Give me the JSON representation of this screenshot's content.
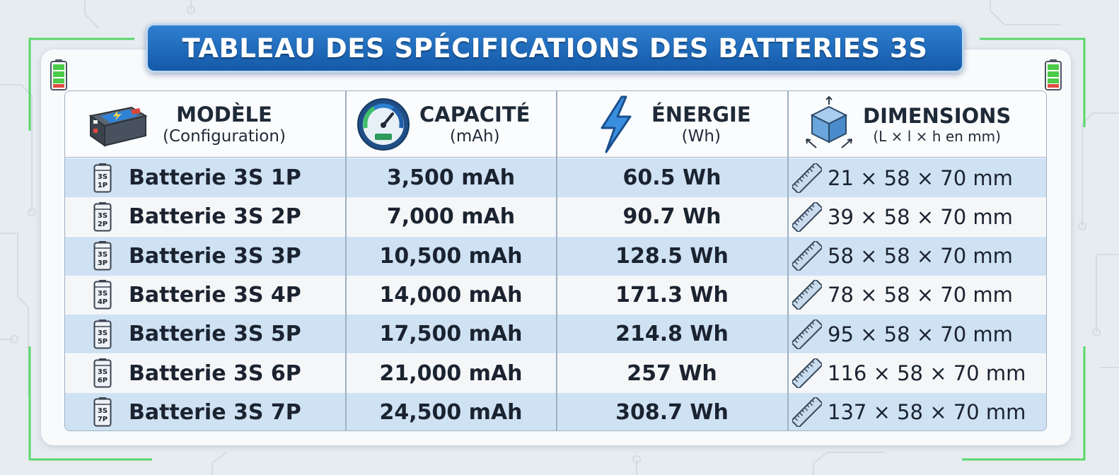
{
  "title": "TABLEAU DES SPÉCIFICATIONS DES BATTERIES 3S",
  "header": {
    "model": {
      "main": "MODÈLE",
      "sub": "(Configuration)",
      "icon": "battery-pack-icon"
    },
    "capacity": {
      "main": "CAPACITÉ",
      "sub": "(mAh)",
      "icon": "gauge-icon"
    },
    "energy": {
      "main": "ÉNERGIE",
      "sub": "(Wh)",
      "icon": "lightning-icon"
    },
    "dimensions": {
      "main": "DIMENSIONS",
      "sub": "(L × l × h en mm)",
      "icon": "cube-icon"
    }
  },
  "rows": [
    {
      "badge": [
        "3S",
        "1P"
      ],
      "model": "Batterie 3S 1P",
      "capacity": "3,500 mAh",
      "energy": "60.5 Wh",
      "dimensions": "21 × 58 × 70 mm"
    },
    {
      "badge": [
        "3S",
        "2P"
      ],
      "model": "Batterie 3S 2P",
      "capacity": "7,000 mAh",
      "energy": "90.7 Wh",
      "dimensions": "39 × 58 × 70 mm"
    },
    {
      "badge": [
        "3S",
        "3P"
      ],
      "model": "Batterie 3S 3P",
      "capacity": "10,500 mAh",
      "energy": "128.5 Wh",
      "dimensions": "58 × 58 × 70 mm"
    },
    {
      "badge": [
        "3S",
        "4P"
      ],
      "model": "Batterie 3S 4P",
      "capacity": "14,000 mAh",
      "energy": "171.3 Wh",
      "dimensions": "78 × 58 × 70 mm"
    },
    {
      "badge": [
        "3S",
        "5P"
      ],
      "model": "Batterie 3S 5P",
      "capacity": "17,500 mAh",
      "energy": "214.8 Wh",
      "dimensions": "95 × 58 × 70 mm"
    },
    {
      "badge": [
        "3S",
        "6P"
      ],
      "model": "Batterie 3S 6P",
      "capacity": "21,000 mAh",
      "energy": "257 Wh",
      "dimensions": "116 × 58 × 70 mm"
    },
    {
      "badge": [
        "3S",
        "7P"
      ],
      "model": "Batterie 3S 7P",
      "capacity": "24,500 mAh",
      "energy": "308.7 Wh",
      "dimensions": "137 × 58 × 70 mm"
    }
  ],
  "colors": {
    "banner": "#1f6cc0",
    "row_blue": "#cfe2f4",
    "row_light": "#f4f6f8",
    "accent_green": "#37d24a"
  }
}
